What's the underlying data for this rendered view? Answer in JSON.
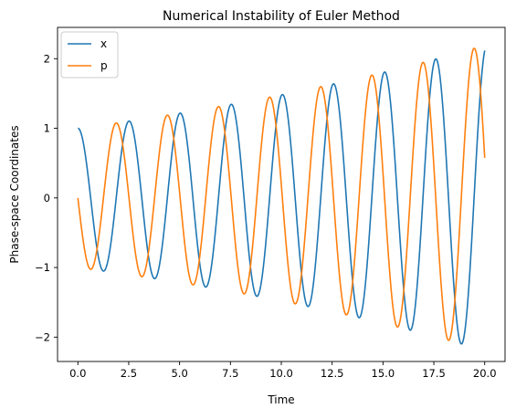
{
  "chart_data": {
    "type": "line",
    "title": "Numerical Instability of Euler Method",
    "xlabel": "Time",
    "ylabel": "Phase-space Coordinates",
    "xlim": [
      -1.0,
      21.0
    ],
    "ylim": [
      -2.35,
      2.45
    ],
    "xticks": [
      0.0,
      2.5,
      5.0,
      7.5,
      10.0,
      12.5,
      15.0,
      17.5,
      20.0
    ],
    "xtick_labels": [
      "0.0",
      "2.5",
      "5.0",
      "7.5",
      "10.0",
      "12.5",
      "15.0",
      "17.5",
      "20.0"
    ],
    "yticks": [
      -2,
      -1,
      0,
      1,
      2
    ],
    "ytick_labels": [
      "−2",
      "−1",
      "0",
      "1",
      "2"
    ],
    "grid": false,
    "legend_position": "top-left",
    "dynamics": {
      "omega": 2.5,
      "growth_rate": 0.0393,
      "t_start": 0.0,
      "t_end": 20.0
    },
    "series": [
      {
        "name": "x",
        "color": "#1f77b4",
        "initial_value": 1.0
      },
      {
        "name": "p",
        "color": "#ff7f0e",
        "initial_value": 0.0
      }
    ]
  }
}
